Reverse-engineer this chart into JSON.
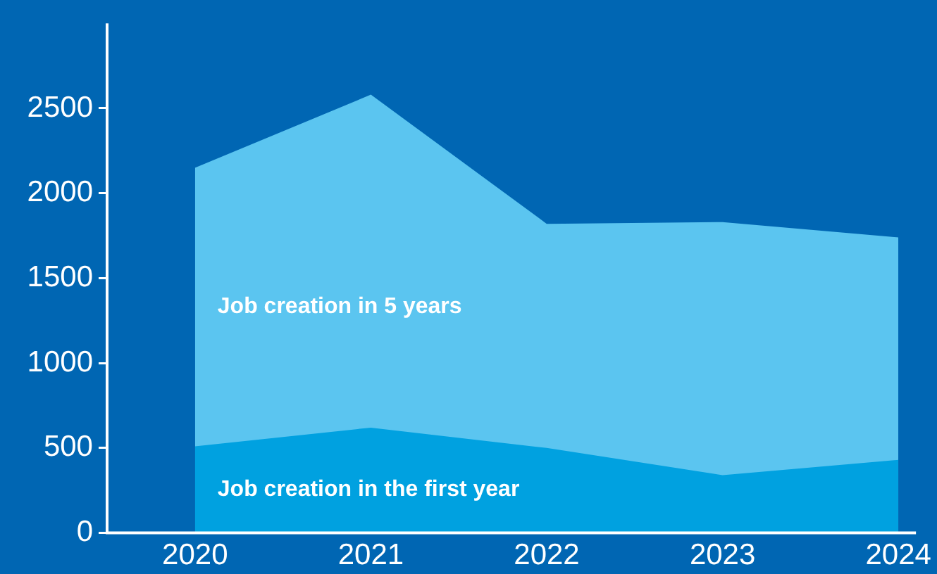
{
  "chart_data": {
    "type": "area",
    "x": [
      2020,
      2021,
      2022,
      2023,
      2024
    ],
    "xlim": [
      2019.5,
      2024.1
    ],
    "xticks": [
      2020,
      2021,
      2022,
      2023,
      2024
    ],
    "ylim": [
      0,
      3000
    ],
    "yticks": [
      0,
      500,
      1000,
      1500,
      2000,
      2500
    ],
    "grid": false,
    "legend": false,
    "series": [
      {
        "name": "Job creation in 5 years",
        "color": "#5bc5f0",
        "values": [
          2150,
          2580,
          1820,
          1830,
          1740
        ]
      },
      {
        "name": "Job creation in the first year",
        "color": "#00a1e0",
        "values": [
          510,
          620,
          500,
          340,
          430
        ]
      }
    ]
  }
}
